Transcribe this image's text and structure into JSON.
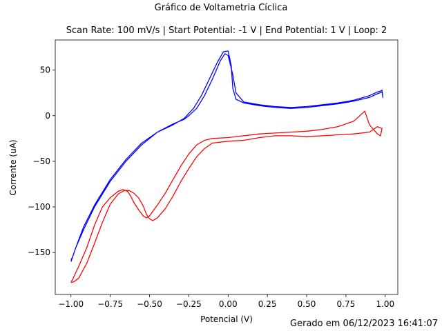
{
  "figure": {
    "suptitle": "Gráfico de Voltametria Cíclica",
    "footer": "Gerado em 06/12/2023 16:41:07"
  },
  "chart_data": {
    "type": "line",
    "title": "Scan Rate: 100 mV/s | Start Potential: -1 V | End Potential: 1 V | Loop: 2",
    "xlabel": "Potencial (V)",
    "ylabel": "Corrente (uA)",
    "xlim": [
      -1.1,
      1.08
    ],
    "ylim": [
      -196,
      83
    ],
    "xticks": [
      -1.0,
      -0.75,
      -0.5,
      -0.25,
      0.0,
      0.25,
      0.5,
      0.75,
      1.0
    ],
    "xtick_labels": [
      "−1.00",
      "−0.75",
      "−0.50",
      "−0.25",
      "0.00",
      "0.25",
      "0.50",
      "0.75",
      "1.00"
    ],
    "yticks": [
      -150,
      -100,
      -50,
      0,
      50
    ],
    "ytick_labels": [
      "−150",
      "−100",
      "−50",
      "0",
      "50"
    ],
    "grid": false,
    "legend": "none",
    "series": [
      {
        "color": "#0000ff",
        "x": [
          -1.0,
          -0.97,
          -0.92,
          -0.85,
          -0.75,
          -0.65,
          -0.55,
          -0.45,
          -0.35,
          -0.28,
          -0.25,
          -0.2,
          -0.15,
          -0.1,
          -0.05,
          -0.02,
          0.0,
          0.03,
          0.05,
          0.1,
          0.2,
          0.3,
          0.4,
          0.5,
          0.6,
          0.7,
          0.8,
          0.9,
          0.95,
          0.97,
          0.98,
          0.985,
          0.98,
          0.95,
          0.9,
          0.8,
          0.7,
          0.6,
          0.5,
          0.4,
          0.3,
          0.2,
          0.1,
          0.05,
          0.03,
          0.02,
          0.0,
          -0.03,
          -0.07,
          -0.12,
          -0.17,
          -0.22,
          -0.28,
          -0.35,
          -0.45,
          -0.55,
          -0.65,
          -0.75,
          -0.85,
          -0.92,
          -0.97,
          -0.99,
          -1.0
        ],
        "y": [
          -160,
          -145,
          -125,
          -100,
          -72,
          -50,
          -32,
          -18,
          -9,
          -4,
          0,
          8,
          22,
          40,
          60,
          68,
          66,
          45,
          25,
          15,
          12,
          10,
          9,
          10,
          12,
          14,
          17,
          22,
          26,
          27,
          28,
          20,
          26,
          24,
          20,
          16,
          13,
          11,
          9,
          8,
          9,
          11,
          14,
          18,
          30,
          55,
          71,
          70,
          58,
          40,
          22,
          8,
          -3,
          -10,
          -18,
          -30,
          -48,
          -70,
          -98,
          -122,
          -145,
          -155,
          -158
        ]
      },
      {
        "color": "#ff0000",
        "x": [
          -1.0,
          -0.99,
          -0.98,
          -0.95,
          -0.9,
          -0.85,
          -0.8,
          -0.75,
          -0.7,
          -0.67,
          -0.64,
          -0.62,
          -0.6,
          -0.57,
          -0.54,
          -0.52,
          -0.5,
          -0.48,
          -0.45,
          -0.4,
          -0.35,
          -0.3,
          -0.25,
          -0.2,
          -0.15,
          -0.1,
          0.0,
          0.1,
          0.2,
          0.3,
          0.4,
          0.5,
          0.6,
          0.7,
          0.8,
          0.87,
          0.9,
          0.95,
          0.97,
          0.98,
          0.95,
          0.9,
          0.8,
          0.7,
          0.6,
          0.5,
          0.4,
          0.3,
          0.2,
          0.1,
          0.0,
          -0.1,
          -0.15,
          -0.2,
          -0.25,
          -0.3,
          -0.35,
          -0.4,
          -0.45,
          -0.48,
          -0.5,
          -0.52,
          -0.54,
          -0.57,
          -0.6,
          -0.63,
          -0.66,
          -0.7,
          -0.75,
          -0.8,
          -0.85,
          -0.9,
          -0.95,
          -0.98,
          -1.0
        ],
        "y": [
          -182,
          -180,
          -176,
          -165,
          -145,
          -120,
          -100,
          -90,
          -83,
          -81,
          -83,
          -88,
          -95,
          -103,
          -110,
          -112,
          -110,
          -105,
          -98,
          -85,
          -70,
          -55,
          -42,
          -32,
          -27,
          -25,
          -24,
          -22,
          -20,
          -19,
          -18,
          -17,
          -15,
          -12,
          -6,
          5,
          -10,
          -20,
          -22,
          -14,
          -12,
          -18,
          -20,
          -21,
          -22,
          -23,
          -22,
          -22,
          -24,
          -27,
          -28,
          -30,
          -36,
          -45,
          -58,
          -72,
          -88,
          -102,
          -112,
          -115,
          -113,
          -108,
          -99,
          -90,
          -85,
          -82,
          -82,
          -86,
          -97,
          -117,
          -140,
          -162,
          -178,
          -182,
          -183
        ]
      }
    ]
  }
}
